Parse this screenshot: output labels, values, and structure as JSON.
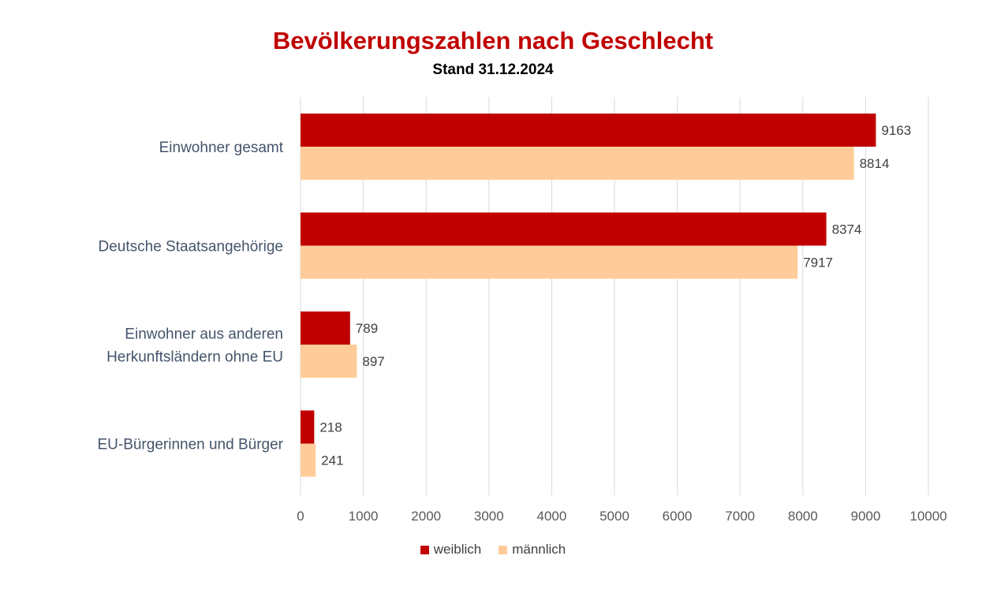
{
  "chart_data": {
    "type": "bar",
    "orientation": "horizontal",
    "title": "Bevölkerungszahlen nach Geschlecht",
    "subtitle": "Stand 31.12.2024",
    "categories": [
      [
        "Einwohner gesamt"
      ],
      [
        "Deutsche Staatsangehörige"
      ],
      [
        "Einwohner aus anderen",
        "Herkunftsländern ohne EU"
      ],
      [
        "EU-Bürgerinnen und Bürger"
      ]
    ],
    "series": [
      {
        "name": "weiblich",
        "color": "#c00000",
        "values": [
          9163,
          8374,
          789,
          218
        ]
      },
      {
        "name": "männlich",
        "color": "#ffcc99",
        "values": [
          8814,
          7917,
          897,
          241
        ]
      }
    ],
    "xlim": [
      0,
      10000
    ],
    "xticks": [
      "0",
      "1000",
      "2000",
      "3000",
      "4000",
      "5000",
      "6000",
      "7000",
      "8000",
      "9000",
      "10000"
    ],
    "grid": "vertical",
    "legend_position": "bottom",
    "data_labels": true
  }
}
